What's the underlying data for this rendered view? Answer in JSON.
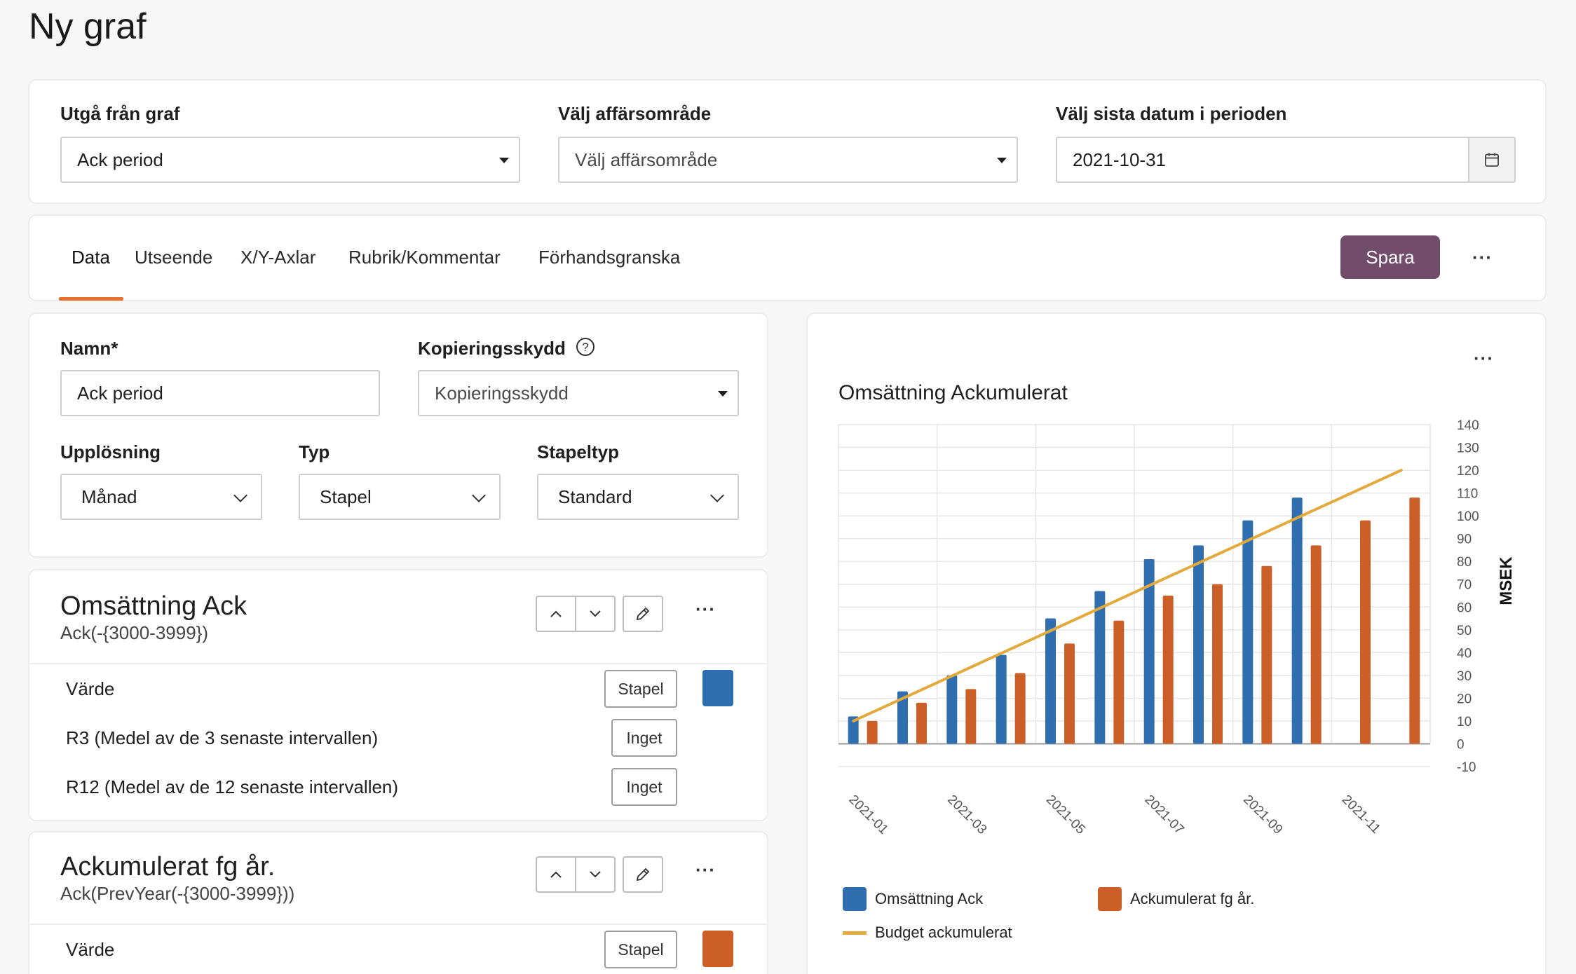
{
  "page": {
    "title": "Ny graf"
  },
  "top_filters": {
    "base_graph": {
      "label": "Utgå från graf",
      "value": "Ack period"
    },
    "business_area": {
      "label": "Välj affärsområde",
      "value": "Välj affärsområde"
    },
    "last_date": {
      "label": "Välj sista datum i perioden",
      "value": "2021-10-31",
      "icon": "calendar-icon"
    }
  },
  "tabs": [
    {
      "label": "Data",
      "active": true
    },
    {
      "label": "Utseende",
      "active": false
    },
    {
      "label": "X/Y-Axlar",
      "active": false
    },
    {
      "label": "Rubrik/Kommentar",
      "active": false
    },
    {
      "label": "Förhandsgranska",
      "active": false
    }
  ],
  "toolbar": {
    "save_label": "Spara",
    "more_label": "···"
  },
  "settings": {
    "name": {
      "label": "Namn*",
      "value": "Ack period"
    },
    "copy_protection": {
      "label": "Kopieringsskydd",
      "value": "Kopieringsskydd"
    },
    "resolution": {
      "label": "Upplösning",
      "value": "Månad"
    },
    "type": {
      "label": "Typ",
      "value": "Stapel"
    },
    "bar_type": {
      "label": "Stapeltyp",
      "value": "Standard"
    }
  },
  "series": [
    {
      "title": "Omsättning Ack",
      "formula": "Ack(-{3000-3999})",
      "color": "#2f6fb0",
      "rows": [
        {
          "label": "Värde",
          "button": "Stapel",
          "has_swatch": true
        },
        {
          "label": "R3 (Medel av de 3 senaste intervallen)",
          "button": "Inget",
          "has_swatch": false
        },
        {
          "label": "R12 (Medel av de 12 senaste intervallen)",
          "button": "Inget",
          "has_swatch": false
        }
      ]
    },
    {
      "title": "Ackumulerat fg år.",
      "formula": "Ack(PrevYear(-{3000-3999}))",
      "color": "#cb5f27",
      "rows": [
        {
          "label": "Värde",
          "button": "Stapel",
          "has_swatch": true
        }
      ]
    }
  ],
  "chart_data": {
    "type": "bar",
    "title": "Omsättning Ackumulerat",
    "ylabel": "MSEK",
    "xlabel": "",
    "ylim": [
      -10,
      140
    ],
    "yticks": [
      140,
      130,
      120,
      110,
      100,
      90,
      80,
      70,
      60,
      50,
      40,
      30,
      20,
      10,
      0,
      -10
    ],
    "categories": [
      "2021-01",
      "2021-02",
      "2021-03",
      "2021-04",
      "2021-05",
      "2021-06",
      "2021-07",
      "2021-08",
      "2021-09",
      "2021-10",
      "2021-11",
      "2021-12"
    ],
    "x_tick_labels": [
      "2021-01",
      "2021-03",
      "2021-05",
      "2021-07",
      "2021-09",
      "2021-11"
    ],
    "grid": true,
    "legend_position": "bottom",
    "series": [
      {
        "name": "Omsättning Ack",
        "kind": "bar",
        "color": "#2f6fb0",
        "values": [
          12,
          23,
          30,
          39,
          55,
          67,
          81,
          87,
          98,
          108,
          null,
          null
        ]
      },
      {
        "name": "Ackumulerat fg år.",
        "kind": "bar",
        "color": "#cb5f27",
        "values": [
          10,
          18,
          24,
          31,
          44,
          54,
          65,
          70,
          78,
          87,
          98,
          108
        ]
      },
      {
        "name": "Budget ackumulerat",
        "kind": "line",
        "color": "#e2a93b",
        "values": [
          10,
          20,
          30,
          40,
          50,
          60,
          70,
          80,
          90,
          100,
          110,
          120
        ]
      }
    ]
  }
}
